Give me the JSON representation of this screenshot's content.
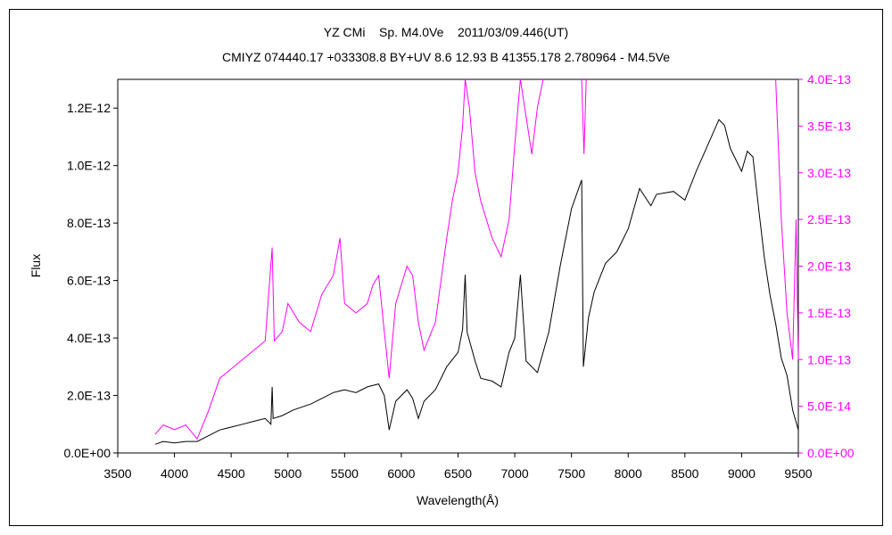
{
  "chart_data": {
    "type": "line",
    "title": "YZ CMi    Sp. M4.0Ve    2011/03/09.446(UT)",
    "subtitle": "CMIYZ 074440.17 +033308.8 BY+UV 8.6 12.93 B 41355.178 2.780964 - M4.5Ve",
    "xlabel": "Wavelength(Å)",
    "ylabel": "Flux",
    "grid": false,
    "xlim": [
      3500,
      9500
    ],
    "ylim": [
      0,
      1.3e-12
    ],
    "y2lim": [
      0,
      4e-13
    ],
    "xticks": [
      "3500",
      "4000",
      "4500",
      "5000",
      "5500",
      "6000",
      "6500",
      "7000",
      "7500",
      "8000",
      "8500",
      "9000",
      "9500"
    ],
    "yticks": [
      "0.0E+00",
      "2.0E-13",
      "4.0E-13",
      "6.0E-13",
      "8.0E-13",
      "1.0E-12",
      "1.2E-12"
    ],
    "y2ticks": [
      "0.0E+00",
      "5.0E-14",
      "1.0E-13",
      "1.5E-13",
      "2.0E-13",
      "2.5E-13",
      "3.0E-13",
      "3.5E-13",
      "4.0E-13"
    ],
    "series": [
      {
        "axis": "left",
        "color": "#000000",
        "points": [
          [
            3830,
            3e-14
          ],
          [
            3900,
            4e-14
          ],
          [
            4000,
            3.5e-14
          ],
          [
            4100,
            4e-14
          ],
          [
            4200,
            4e-14
          ],
          [
            4300,
            6e-14
          ],
          [
            4400,
            8e-14
          ],
          [
            4500,
            9e-14
          ],
          [
            4600,
            1e-13
          ],
          [
            4700,
            1.1e-13
          ],
          [
            4800,
            1.2e-13
          ],
          [
            4850,
            1e-13
          ],
          [
            4861,
            2.3e-13
          ],
          [
            4870,
            1.2e-13
          ],
          [
            4950,
            1.3e-13
          ],
          [
            5050,
            1.5e-13
          ],
          [
            5200,
            1.7e-13
          ],
          [
            5300,
            1.9e-13
          ],
          [
            5400,
            2.1e-13
          ],
          [
            5500,
            2.2e-13
          ],
          [
            5600,
            2.1e-13
          ],
          [
            5700,
            2.3e-13
          ],
          [
            5800,
            2.4e-13
          ],
          [
            5850,
            2e-13
          ],
          [
            5893,
            8e-14
          ],
          [
            5950,
            1.8e-13
          ],
          [
            6050,
            2.2e-13
          ],
          [
            6100,
            1.9e-13
          ],
          [
            6150,
            1.2e-13
          ],
          [
            6200,
            1.8e-13
          ],
          [
            6300,
            2.2e-13
          ],
          [
            6400,
            3e-13
          ],
          [
            6500,
            3.5e-13
          ],
          [
            6540,
            4.3e-13
          ],
          [
            6563,
            6.2e-13
          ],
          [
            6580,
            4.2e-13
          ],
          [
            6650,
            3.2e-13
          ],
          [
            6700,
            2.6e-13
          ],
          [
            6800,
            2.5e-13
          ],
          [
            6880,
            2.3e-13
          ],
          [
            6950,
            3.5e-13
          ],
          [
            7000,
            4e-13
          ],
          [
            7050,
            6.2e-13
          ],
          [
            7100,
            3.2e-13
          ],
          [
            7200,
            2.8e-13
          ],
          [
            7300,
            4.2e-13
          ],
          [
            7400,
            6.5e-13
          ],
          [
            7500,
            8.5e-13
          ],
          [
            7590,
            9.5e-13
          ],
          [
            7605,
            3e-13
          ],
          [
            7650,
            4.7e-13
          ],
          [
            7700,
            5.6e-13
          ],
          [
            7800,
            6.6e-13
          ],
          [
            7900,
            7e-13
          ],
          [
            8000,
            7.8e-13
          ],
          [
            8100,
            9.2e-13
          ],
          [
            8200,
            8.6e-13
          ],
          [
            8250,
            9e-13
          ],
          [
            8400,
            9.1e-13
          ],
          [
            8500,
            8.8e-13
          ],
          [
            8600,
            9.8e-13
          ],
          [
            8700,
            1.07e-12
          ],
          [
            8800,
            1.16e-12
          ],
          [
            8850,
            1.14e-12
          ],
          [
            8900,
            1.06e-12
          ],
          [
            9000,
            9.8e-13
          ],
          [
            9050,
            1.05e-12
          ],
          [
            9100,
            1.03e-12
          ],
          [
            9150,
            8.5e-13
          ],
          [
            9200,
            6.8e-13
          ],
          [
            9250,
            5.5e-13
          ],
          [
            9300,
            4.5e-13
          ],
          [
            9350,
            3.3e-13
          ],
          [
            9400,
            2.7e-13
          ],
          [
            9450,
            1.5e-13
          ],
          [
            9500,
            8e-14
          ]
        ]
      },
      {
        "axis": "right",
        "color": "#ff00ff",
        "points": [
          [
            3830,
            2e-14
          ],
          [
            3900,
            3e-14
          ],
          [
            4000,
            2.5e-14
          ],
          [
            4100,
            3e-14
          ],
          [
            4200,
            1.5e-14
          ],
          [
            4300,
            4.5e-14
          ],
          [
            4400,
            8e-14
          ],
          [
            4500,
            9e-14
          ],
          [
            4600,
            1e-13
          ],
          [
            4700,
            1.1e-13
          ],
          [
            4800,
            1.2e-13
          ],
          [
            4861,
            2.2e-13
          ],
          [
            4880,
            1.2e-13
          ],
          [
            4950,
            1.3e-13
          ],
          [
            5000,
            1.6e-13
          ],
          [
            5100,
            1.4e-13
          ],
          [
            5200,
            1.3e-13
          ],
          [
            5300,
            1.7e-13
          ],
          [
            5400,
            1.9e-13
          ],
          [
            5460,
            2.3e-13
          ],
          [
            5500,
            1.6e-13
          ],
          [
            5600,
            1.5e-13
          ],
          [
            5700,
            1.6e-13
          ],
          [
            5750,
            1.8e-13
          ],
          [
            5800,
            1.9e-13
          ],
          [
            5850,
            1.3e-13
          ],
          [
            5893,
            8e-14
          ],
          [
            5950,
            1.6e-13
          ],
          [
            6050,
            2e-13
          ],
          [
            6100,
            1.9e-13
          ],
          [
            6150,
            1.4e-13
          ],
          [
            6200,
            1.1e-13
          ],
          [
            6300,
            1.4e-13
          ],
          [
            6400,
            2.3e-13
          ],
          [
            6450,
            2.7e-13
          ],
          [
            6500,
            3e-13
          ],
          [
            6540,
            3.5e-13
          ],
          [
            6563,
            4e-13
          ],
          [
            6600,
            3.7e-13
          ],
          [
            6650,
            3e-13
          ],
          [
            6700,
            2.7e-13
          ],
          [
            6800,
            2.3e-13
          ],
          [
            6880,
            2.1e-13
          ],
          [
            6950,
            2.5e-13
          ],
          [
            7000,
            3.3e-13
          ],
          [
            7050,
            4e-13
          ],
          [
            7100,
            3.6e-13
          ],
          [
            7150,
            3.2e-13
          ],
          [
            7200,
            3.7e-13
          ],
          [
            7250,
            4e-13
          ]
        ]
      },
      {
        "axis": "right",
        "color": "#ff00ff",
        "points": [
          [
            7590,
            4e-13
          ],
          [
            7610,
            3.2e-13
          ],
          [
            7630,
            4e-13
          ]
        ]
      },
      {
        "axis": "right",
        "color": "#ff00ff",
        "points": [
          [
            9300,
            4e-13
          ],
          [
            9350,
            2.5e-13
          ],
          [
            9400,
            1.5e-13
          ],
          [
            9450,
            1e-13
          ],
          [
            9480,
            2.5e-13
          ],
          [
            9500,
            1e-13
          ]
        ]
      }
    ]
  }
}
